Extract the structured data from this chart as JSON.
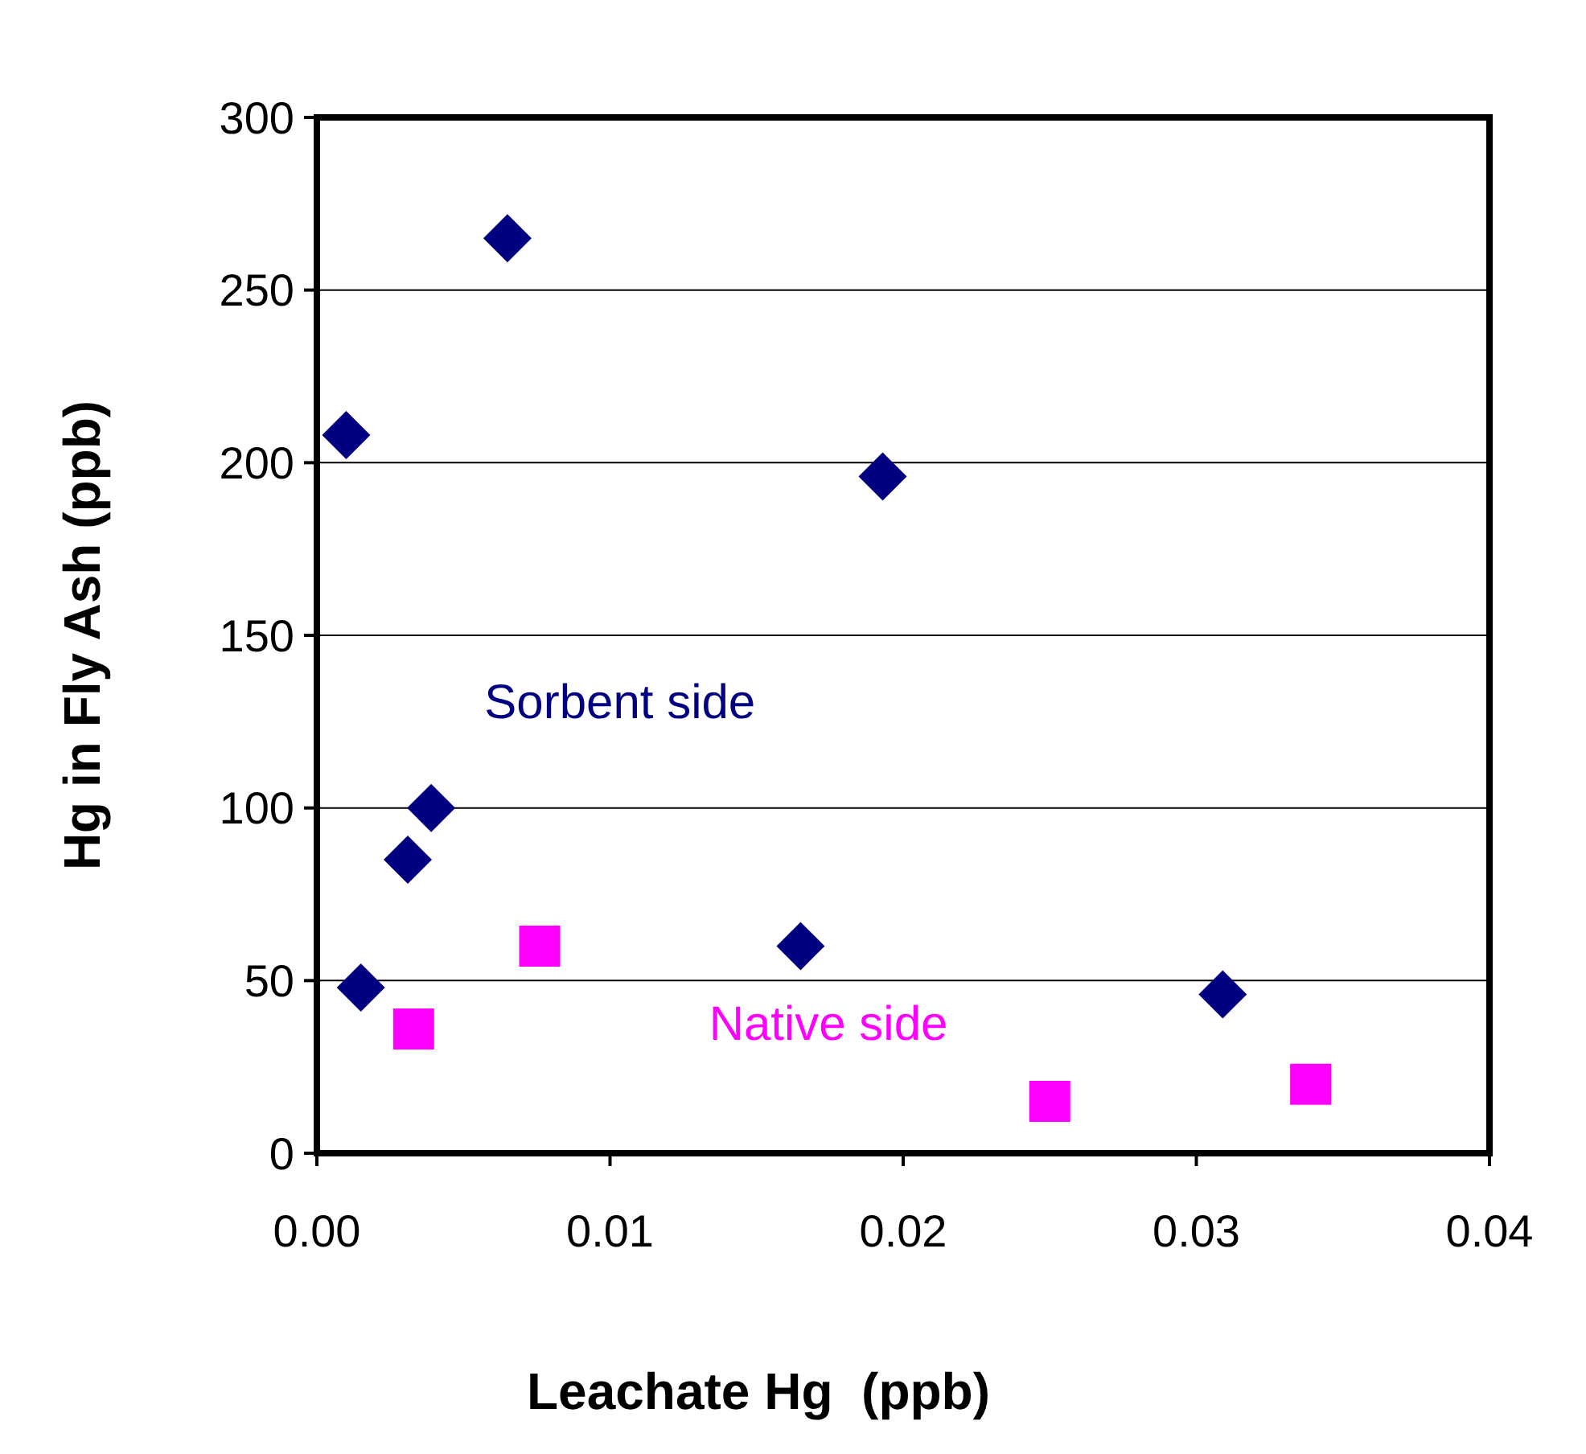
{
  "chart_data": {
    "type": "scatter",
    "xlabel": "Leachate Hg  (ppb)",
    "ylabel": "Hg in Fly Ash (ppb)",
    "xlim": [
      0,
      0.04
    ],
    "xticks": [
      {
        "value": 0,
        "label": "0.00"
      },
      {
        "value": 0.01,
        "label": "0.01"
      },
      {
        "value": 0.02,
        "label": "0.02"
      },
      {
        "value": 0.03,
        "label": "0.03"
      },
      {
        "value": 0.04,
        "label": "0.04"
      }
    ],
    "ylim": [
      0,
      300
    ],
    "yticks": [
      0,
      50,
      100,
      150,
      200,
      250,
      300
    ],
    "grid": "y",
    "series": [
      {
        "name": "Sorbent side",
        "color": "#000080",
        "marker": "diamond",
        "x": [
          0.001,
          0.0065,
          0.0015,
          0.0031,
          0.0039,
          0.0165,
          0.0193,
          0.0309
        ],
        "values": [
          208,
          265,
          48,
          85,
          100,
          60,
          196,
          46
        ]
      },
      {
        "name": "Native side",
        "color": "#ff00ff",
        "marker": "square",
        "x": [
          0.0033,
          0.0076,
          0.025,
          0.0339
        ],
        "values": [
          36,
          60,
          15,
          20
        ]
      }
    ]
  }
}
